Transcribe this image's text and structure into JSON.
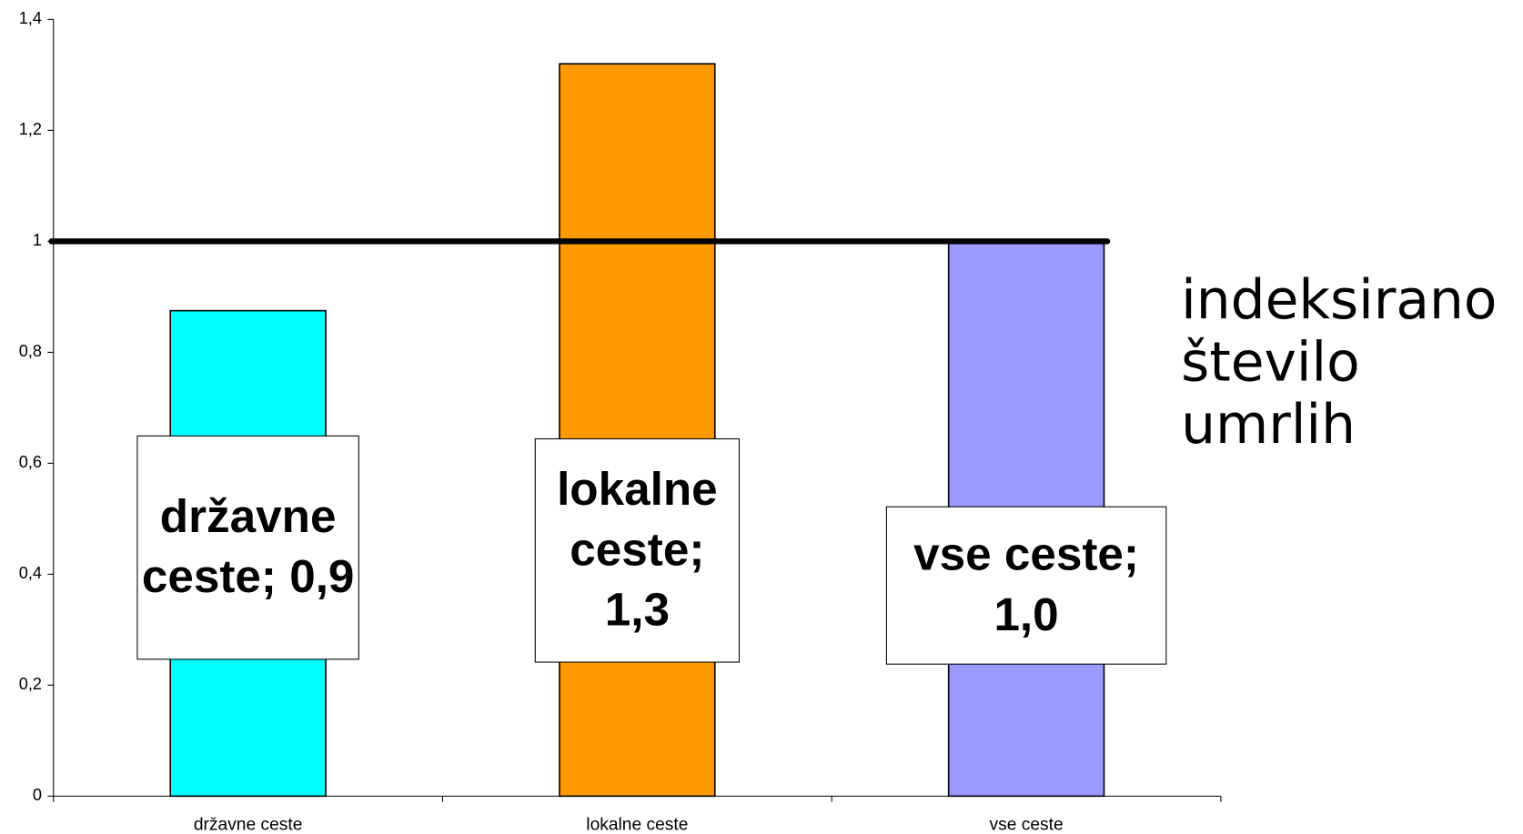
{
  "chart_data": {
    "type": "bar",
    "categories": [
      "državne ceste",
      "lokalne ceste",
      "vse ceste"
    ],
    "values": [
      0.875,
      1.32,
      1.0
    ],
    "value_labels": [
      "državne ceste; 0,9",
      "lokalne ceste; 1,3",
      "vse ceste; 1,0"
    ],
    "colors": [
      "#00ffff",
      "#ff9900",
      "#9999ff"
    ],
    "ylim": [
      0,
      1.4
    ],
    "yticks": [
      0,
      {
        "value": 0.2,
        "label": "0,2"
      },
      {
        "value": 0.4,
        "label": "0,4"
      },
      {
        "value": 0.6,
        "label": "0,6"
      },
      {
        "value": 0.8,
        "label": "0,8"
      },
      1,
      {
        "value": 1.2,
        "label": "1,2"
      },
      {
        "value": 1.4,
        "label": "1,4"
      }
    ],
    "reference_line": 1,
    "annotation": "indeksirano število umrlih",
    "grid": false
  }
}
